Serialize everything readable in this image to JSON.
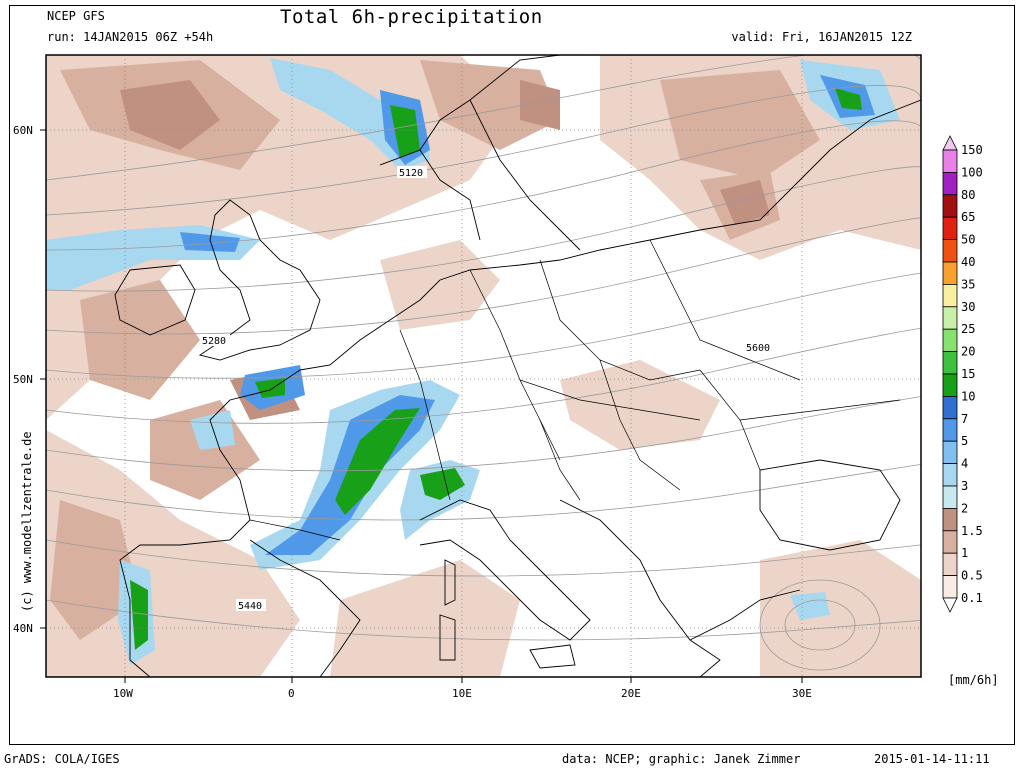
{
  "header": {
    "model": "NCEP GFS",
    "run": "run: 14JAN2015 06Z +54h",
    "title": "Total 6h-precipitation",
    "valid": "valid: Fri, 16JAN2015 12Z"
  },
  "axes": {
    "lat_ticks": [
      "60N",
      "50N",
      "40N"
    ],
    "lon_ticks": [
      "10W",
      "0",
      "10E",
      "20E",
      "30E"
    ]
  },
  "contour_labels": [
    "5120",
    "5280",
    "5600",
    "5440"
  ],
  "legend": {
    "unit": "[mm/6h]",
    "levels": [
      "150",
      "100",
      "80",
      "65",
      "50",
      "40",
      "35",
      "30",
      "25",
      "20",
      "15",
      "10",
      "7",
      "5",
      "4",
      "3",
      "2",
      "1.5",
      "1",
      "0.5",
      "0.1"
    ],
    "colors": [
      "#f0c8f0",
      "#e880e8",
      "#a020c0",
      "#a01010",
      "#e02010",
      "#f05010",
      "#f8a030",
      "#f8f0a0",
      "#c8f0a8",
      "#88e070",
      "#40c040",
      "#18a018",
      "#3070d0",
      "#5098e8",
      "#80c0f0",
      "#a8d8f0",
      "#c8e8f0",
      "#c09080",
      "#d8b0a0",
      "#ecd4c8",
      "#f8ece4"
    ]
  },
  "side_text": "(c) www.modellzentrale.de",
  "footer": {
    "left": "GrADS: COLA/IGES",
    "data": "data: NCEP; graphic: Janek Zimmer",
    "date": "2015-01-14-11:11"
  }
}
